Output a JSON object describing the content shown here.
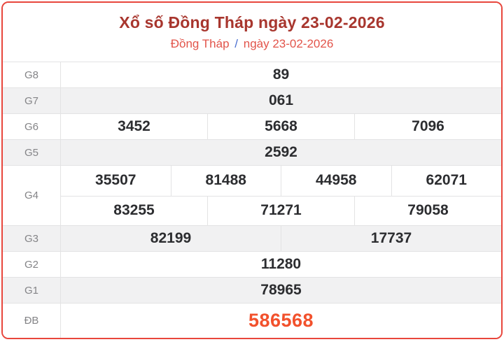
{
  "header": {
    "title": "Xổ số Đồng Tháp ngày 23-02-2026",
    "subtitle_region": "Đồng Tháp",
    "subtitle_separator": "/",
    "subtitle_date": "ngày 23-02-2026"
  },
  "colors": {
    "card_border": "#e8463c",
    "title_text": "#a8362e",
    "subtitle_text": "#e2544a",
    "subtitle_separator": "#4a6fd0",
    "special_prize_text": "#f2512c",
    "number_text": "#2c2d30",
    "label_text": "#848487",
    "alt_row_bg": "#f1f1f2"
  },
  "prizes": {
    "g8": {
      "label": "G8",
      "values": [
        "89"
      ]
    },
    "g7": {
      "label": "G7",
      "values": [
        "061"
      ]
    },
    "g6": {
      "label": "G6",
      "values": [
        "3452",
        "5668",
        "7096"
      ]
    },
    "g5": {
      "label": "G5",
      "values": [
        "2592"
      ]
    },
    "g4": {
      "label": "G4",
      "rows": [
        [
          "35507",
          "81488",
          "44958",
          "62071"
        ],
        [
          "83255",
          "71271",
          "79058"
        ]
      ]
    },
    "g3": {
      "label": "G3",
      "values": [
        "82199",
        "17737"
      ]
    },
    "g2": {
      "label": "G2",
      "values": [
        "11280"
      ]
    },
    "g1": {
      "label": "G1",
      "values": [
        "78965"
      ]
    },
    "db": {
      "label": "ĐB",
      "values": [
        "586568"
      ]
    }
  }
}
